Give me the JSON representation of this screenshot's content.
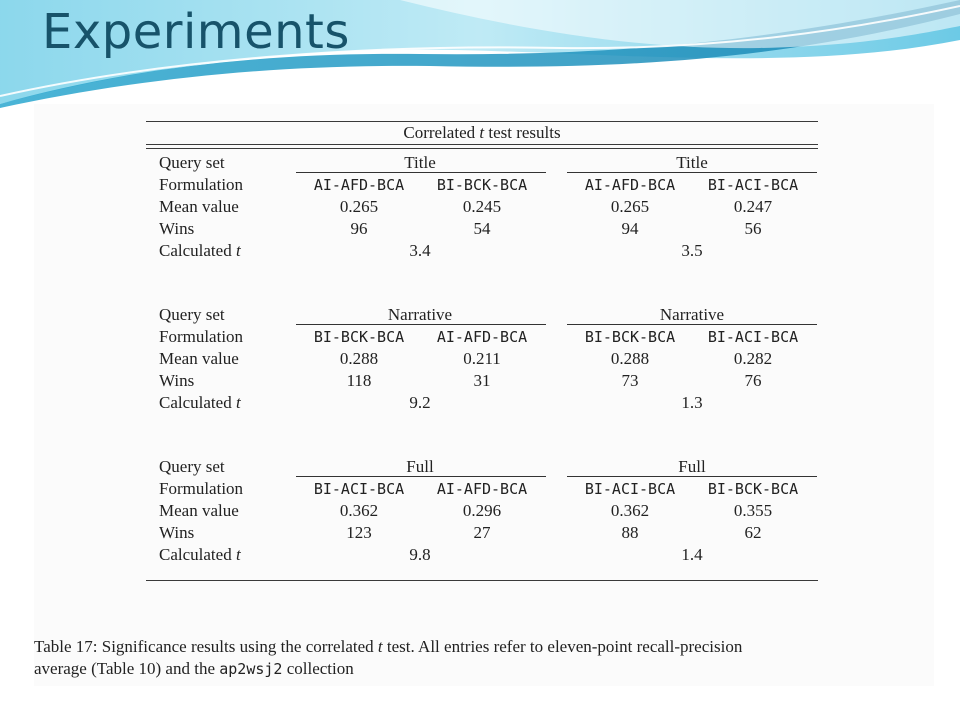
{
  "slide": {
    "title": "Experiments"
  },
  "table": {
    "caption_prefix": "Correlated",
    "caption_t": "t",
    "caption_suffix": "test results",
    "row_labels": {
      "query_set": "Query set",
      "formulation": "Formulation",
      "mean_value": "Mean value",
      "wins": "Wins",
      "calculated": "Calculated",
      "t": "t"
    },
    "groups": [
      {
        "left": {
          "query_set": "Title",
          "formulations": [
            "AI-AFD-BCA",
            "BI-BCK-BCA"
          ],
          "means": [
            "0.265",
            "0.245"
          ],
          "wins": [
            "96",
            "54"
          ],
          "t_value": "3.4"
        },
        "right": {
          "query_set": "Title",
          "formulations": [
            "AI-AFD-BCA",
            "BI-ACI-BCA"
          ],
          "means": [
            "0.265",
            "0.247"
          ],
          "wins": [
            "94",
            "56"
          ],
          "t_value": "3.5"
        }
      },
      {
        "left": {
          "query_set": "Narrative",
          "formulations": [
            "BI-BCK-BCA",
            "AI-AFD-BCA"
          ],
          "means": [
            "0.288",
            "0.211"
          ],
          "wins": [
            "118",
            "31"
          ],
          "t_value": "9.2"
        },
        "right": {
          "query_set": "Narrative",
          "formulations": [
            "BI-BCK-BCA",
            "BI-ACI-BCA"
          ],
          "means": [
            "0.288",
            "0.282"
          ],
          "wins": [
            "73",
            "76"
          ],
          "t_value": "1.3"
        }
      },
      {
        "left": {
          "query_set": "Full",
          "formulations": [
            "BI-ACI-BCA",
            "AI-AFD-BCA"
          ],
          "means": [
            "0.362",
            "0.296"
          ],
          "wins": [
            "123",
            "27"
          ],
          "t_value": "9.8"
        },
        "right": {
          "query_set": "Full",
          "formulations": [
            "BI-ACI-BCA",
            "BI-BCK-BCA"
          ],
          "means": [
            "0.362",
            "0.355"
          ],
          "wins": [
            "88",
            "62"
          ],
          "t_value": "1.4"
        }
      }
    ]
  },
  "note": {
    "line1_a": "Table 17:  Significance results using the correlated ",
    "line1_t": "t",
    "line1_b": " test.  All entries refer to eleven-point recall-precision",
    "line2_a": "average (Table 10) and the ",
    "line2_code": "ap2wsj2",
    "line2_b": " collection"
  }
}
